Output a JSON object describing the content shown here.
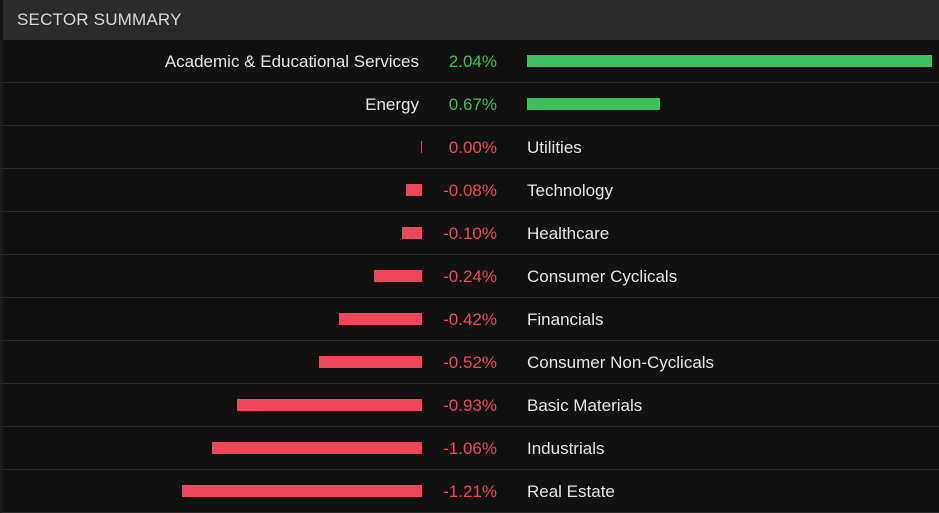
{
  "header": {
    "title": "SECTOR SUMMARY"
  },
  "colors": {
    "positive": "#3dc15e",
    "negative": "#f0485a"
  },
  "chart_data": {
    "type": "bar",
    "orientation": "horizontal",
    "categories": [
      "Academic & Educational Services",
      "Energy",
      "Utilities",
      "Technology",
      "Healthcare",
      "Consumer Cyclicals",
      "Financials",
      "Consumer Non-Cyclicals",
      "Basic Materials",
      "Industrials",
      "Real Estate"
    ],
    "values": [
      2.04,
      0.67,
      0.0,
      -0.08,
      -0.1,
      -0.24,
      -0.42,
      -0.52,
      -0.93,
      -1.06,
      -1.21
    ],
    "value_labels": [
      "2.04%",
      "0.67%",
      "0.00%",
      "-0.08%",
      "-0.10%",
      "-0.24%",
      "-0.42%",
      "-0.52%",
      "-0.93%",
      "-1.06%",
      "-1.21%"
    ],
    "title": "SECTOR SUMMARY",
    "xlabel": "",
    "ylabel": ""
  }
}
